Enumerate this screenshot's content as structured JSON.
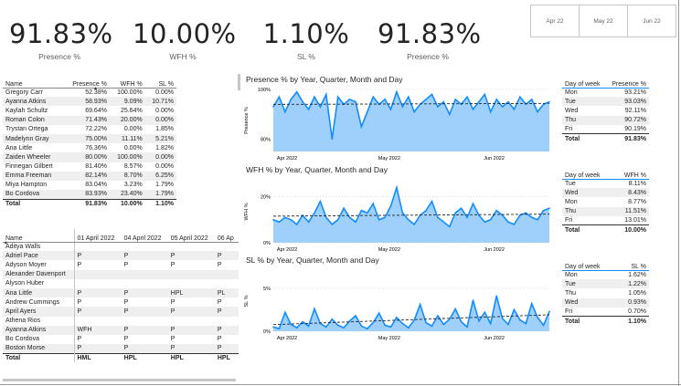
{
  "kpis": [
    {
      "value": "91.83%",
      "label": "Presence %"
    },
    {
      "value": "10.00%",
      "label": "WFH %"
    },
    {
      "value": "1.10%",
      "label": "SL %"
    },
    {
      "value": "91.83%",
      "label": "Presence %"
    }
  ],
  "month_slicer": [
    "Apr 22",
    "May 22",
    "Jun 22"
  ],
  "people_table": {
    "headers": [
      "Name",
      "Presence %",
      "WFH %",
      "SL %"
    ],
    "rows": [
      [
        "Gregory Carr",
        "52.38%",
        "100.00%",
        "0.00%"
      ],
      [
        "Ayanna Atkins",
        "58.93%",
        "9.09%",
        "10.71%"
      ],
      [
        "Kaylah Schultz",
        "69.64%",
        "25.64%",
        "0.00%"
      ],
      [
        "Roman Colon",
        "71.43%",
        "20.00%",
        "0.00%"
      ],
      [
        "Trystan Ortega",
        "72.22%",
        "0.00%",
        "1.85%"
      ],
      [
        "Madelynn Gray",
        "75.00%",
        "11.11%",
        "5.21%"
      ],
      [
        "Ana Little",
        "76.36%",
        "0.00%",
        "1.82%"
      ],
      [
        "Zaiden Wheeler",
        "80.00%",
        "100.00%",
        "0.00%"
      ],
      [
        "Finnegan Gilbert",
        "81.40%",
        "8.57%",
        "0.00%"
      ],
      [
        "Emma Freeman",
        "82.14%",
        "8.70%",
        "6.25%"
      ],
      [
        "Miya Hampton",
        "83.04%",
        "3.23%",
        "1.79%"
      ],
      [
        "Bo Cordova",
        "83.93%",
        "23.40%",
        "1.79%"
      ]
    ],
    "total": [
      "Total",
      "91.83%",
      "10.00%",
      "1.10%"
    ]
  },
  "attendance_matrix": {
    "headers": [
      "Name",
      "01 April 2022",
      "04 April 2022",
      "05 April 2022",
      "06 Ap"
    ],
    "rows": [
      [
        "Aditya Walls",
        "",
        "",
        "",
        ""
      ],
      [
        "Adriel Pace",
        "P",
        "P",
        "P",
        "P"
      ],
      [
        "Adyson Moyer",
        "P",
        "P",
        "P",
        "P"
      ],
      [
        "Alexander Davenport",
        "",
        "",
        "",
        ""
      ],
      [
        "Alyson Huber",
        "",
        "",
        "",
        ""
      ],
      [
        "Ana Little",
        "P",
        "P",
        "HPL",
        "PL"
      ],
      [
        "Andrew Cummings",
        "P",
        "P",
        "P",
        "P"
      ],
      [
        "April Ayers",
        "P",
        "P",
        "P",
        "P"
      ],
      [
        "Athena Rios",
        "",
        "",
        "",
        ""
      ],
      [
        "Ayanna Atkins",
        "WFH",
        "P",
        "P",
        "P"
      ],
      [
        "Bo Cordova",
        "P",
        "P",
        "P",
        "P"
      ],
      [
        "Boston Morse",
        "P",
        "P",
        "P",
        "P"
      ]
    ],
    "total": [
      "Total",
      "HML",
      "HPL",
      "HPL",
      "HPL"
    ]
  },
  "dow_presence": {
    "headers": [
      "Day of week",
      "Presence %"
    ],
    "rows": [
      [
        "Mon",
        "93.21%"
      ],
      [
        "Tue",
        "93.03%"
      ],
      [
        "Wed",
        "92.11%"
      ],
      [
        "Thu",
        "90.72%"
      ],
      [
        "Fri",
        "90.19%"
      ]
    ],
    "total": [
      "Total",
      "91.83%"
    ]
  },
  "dow_wfh": {
    "headers": [
      "Day of week",
      "WFH %"
    ],
    "rows": [
      [
        "Tue",
        "8.11%"
      ],
      [
        "Wed",
        "8.43%"
      ],
      [
        "Mon",
        "8.77%"
      ],
      [
        "Thu",
        "11.51%"
      ],
      [
        "Fri",
        "13.01%"
      ]
    ],
    "total": [
      "Total",
      "10.00%"
    ]
  },
  "dow_sl": {
    "headers": [
      "Day of week",
      "SL %"
    ],
    "rows": [
      [
        "Mon",
        "1.62%"
      ],
      [
        "Tue",
        "1.22%"
      ],
      [
        "Thu",
        "1.05%"
      ],
      [
        "Wed",
        "0.93%"
      ],
      [
        "Fri",
        "0.70%"
      ]
    ],
    "total": [
      "Total",
      "1.10%"
    ]
  },
  "chart_data": [
    {
      "type": "area",
      "title": "Presence % by Year, Quarter, Month and Day",
      "ylabel": "Presence %",
      "x_ticks": [
        "Apr 2022",
        "May 2022",
        "Jun 2022"
      ],
      "y_ticks": [
        "100%",
        "80%"
      ],
      "ylim": [
        75,
        100
      ],
      "trend": "dashed",
      "values": [
        93,
        97,
        91,
        96,
        99,
        95,
        92,
        97,
        93,
        98,
        80,
        97,
        94,
        96,
        95,
        85,
        91,
        97,
        94,
        96,
        92,
        99,
        93,
        97,
        91,
        94,
        96,
        98,
        93,
        95,
        90,
        96,
        94,
        97,
        92,
        95,
        98,
        91,
        96,
        93,
        95,
        92,
        97,
        94,
        96,
        91,
        94,
        95
      ],
      "color": "#118DFF"
    },
    {
      "type": "area",
      "title": "WFH % by Year, Quarter, Month and Day",
      "ylabel": "WFH %",
      "x_ticks": [
        "Apr 2022",
        "May 2022",
        "Jun 2022"
      ],
      "y_ticks": [
        "20%",
        "0%"
      ],
      "ylim": [
        0,
        27
      ],
      "trend": "dashed",
      "values": [
        10,
        9,
        11,
        10,
        8,
        12,
        9,
        13,
        18,
        11,
        8,
        10,
        15,
        11,
        9,
        14,
        13,
        17,
        10,
        11,
        16,
        24,
        13,
        10,
        8,
        12,
        14,
        18,
        11,
        9,
        7,
        13,
        15,
        11,
        17,
        12,
        9,
        10,
        14,
        12,
        9,
        8,
        12,
        13,
        11,
        10,
        14,
        15
      ],
      "color": "#118DFF"
    },
    {
      "type": "area",
      "title": "SL % by Year, Quarter, Month and Day",
      "ylabel": "SL %",
      "x_ticks": [
        "Apr 2022",
        "May 2022",
        "Jun 2022"
      ],
      "y_ticks": [
        "5%",
        "0%"
      ],
      "ylim": [
        0,
        7
      ],
      "trend": "dashed",
      "values": [
        0.5,
        0.3,
        2.2,
        0.8,
        0.4,
        1.1,
        0.6,
        2.6,
        0.9,
        0.5,
        1.4,
        0.7,
        0.4,
        1.2,
        1.8,
        0.6,
        0.3,
        1.0,
        2.1,
        0.7,
        0.5,
        1.6,
        0.9,
        0.4,
        1.3,
        3.1,
        1.0,
        0.6,
        1.8,
        0.8,
        1.4,
        2.6,
        1.1,
        0.5,
        3.6,
        1.2,
        2.2,
        0.9,
        4.1,
        1.5,
        0.8,
        2.5,
        1.3,
        0.9,
        3.2,
        1.6,
        0.7,
        2.3
      ],
      "color": "#118DFF"
    }
  ]
}
